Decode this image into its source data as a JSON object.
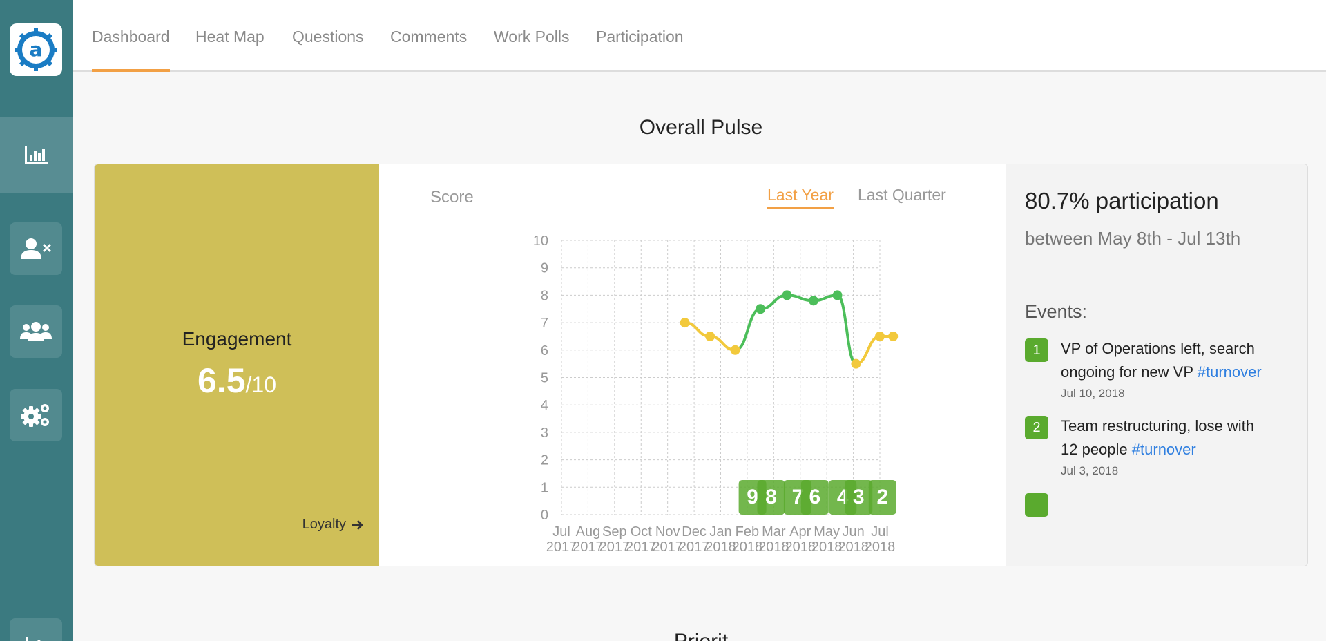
{
  "nav": {
    "tabs": [
      {
        "label": "Dashboard",
        "active": true
      },
      {
        "label": "Heat Map",
        "active": false
      },
      {
        "label": "Questions",
        "active": false
      },
      {
        "label": "Comments",
        "active": false
      },
      {
        "label": "Work Polls",
        "active": false
      },
      {
        "label": "Participation",
        "active": false
      }
    ]
  },
  "sidebar": {
    "icons": [
      "logo-icon",
      "chart-icon",
      "remove-user-icon",
      "team-icon",
      "settings-gears-icon",
      "logout-icon"
    ]
  },
  "page": {
    "title": "Overall Pulse",
    "next_section": "Priorit"
  },
  "engagement": {
    "label": "Engagement",
    "score": "6.5",
    "max": "/10",
    "link": "Loyalty",
    "panel_color": "#cfbf58"
  },
  "chart": {
    "y_title": "Score",
    "range_options": [
      "Last Year",
      "Last Quarter"
    ],
    "active_range": "Last Year"
  },
  "chart_data": {
    "type": "line",
    "title": "",
    "ylabel": "Score",
    "ylim": [
      0,
      10
    ],
    "yticks": [
      "10",
      "9",
      "8",
      "7",
      "6",
      "5",
      "4",
      "3",
      "2",
      "1",
      "0"
    ],
    "x_labels": [
      [
        "Jul",
        "2017"
      ],
      [
        "Aug",
        "2017"
      ],
      [
        "Sep",
        "2017"
      ],
      [
        "Oct",
        "2017"
      ],
      [
        "Nov",
        "2017"
      ],
      [
        "Dec",
        "2017"
      ],
      [
        "Jan",
        "2018"
      ],
      [
        "Feb",
        "2018"
      ],
      [
        "Mar",
        "2018"
      ],
      [
        "Apr",
        "2018"
      ],
      [
        "May",
        "2018"
      ],
      [
        "Jun",
        "2018"
      ],
      [
        "Jul",
        "2018"
      ]
    ],
    "points": [
      {
        "x": 4.65,
        "y": 7.0,
        "color": "#f2c93c"
      },
      {
        "x": 5.6,
        "y": 6.5,
        "color": "#f2c93c"
      },
      {
        "x": 6.55,
        "y": 6.0,
        "color": "#f2c93c"
      },
      {
        "x": 7.5,
        "y": 7.5,
        "color": "#4cbe5a"
      },
      {
        "x": 8.5,
        "y": 8.0,
        "color": "#4cbe5a"
      },
      {
        "x": 9.5,
        "y": 7.8,
        "color": "#4cbe5a"
      },
      {
        "x": 10.4,
        "y": 8.0,
        "color": "#4cbe5a"
      },
      {
        "x": 11.1,
        "y": 5.5,
        "color": "#f2c93c"
      },
      {
        "x": 12.0,
        "y": 6.5,
        "color": "#f2c93c"
      },
      {
        "x": 12.5,
        "y": 6.5,
        "color": "#f2c93c"
      }
    ],
    "event_markers": [
      {
        "label": "9",
        "x": 7.2
      },
      {
        "label": "8",
        "x": 7.9
      },
      {
        "label": "7",
        "x": 8.9
      },
      {
        "label": "6",
        "x": 9.55
      },
      {
        "label": "4",
        "x": 10.6
      },
      {
        "label": "3",
        "x": 11.2
      },
      {
        "label": "2",
        "x": 12.1
      }
    ],
    "grid": true,
    "line_colors": {
      "low": "#f2c93c",
      "high": "#4cbe5a"
    },
    "marker_color": "#5aaa2e"
  },
  "participation": {
    "title": "80.7% participation",
    "subtitle": "between May 8th - Jul 13th"
  },
  "events": {
    "title": "Events:",
    "items": [
      {
        "num": "1",
        "text": "VP of Operations left, search ongoing for new VP",
        "tag": "#turnover",
        "date": "Jul 10, 2018"
      },
      {
        "num": "2",
        "text": "Team restructuring, lose with 12 people",
        "tag": "#turnover",
        "date": "Jul 3, 2018"
      }
    ]
  },
  "colors": {
    "accent": "#f2a045",
    "sidebar": "#3b7a80",
    "tag_link": "#2f7fe0",
    "badge": "#5aaa2e"
  }
}
